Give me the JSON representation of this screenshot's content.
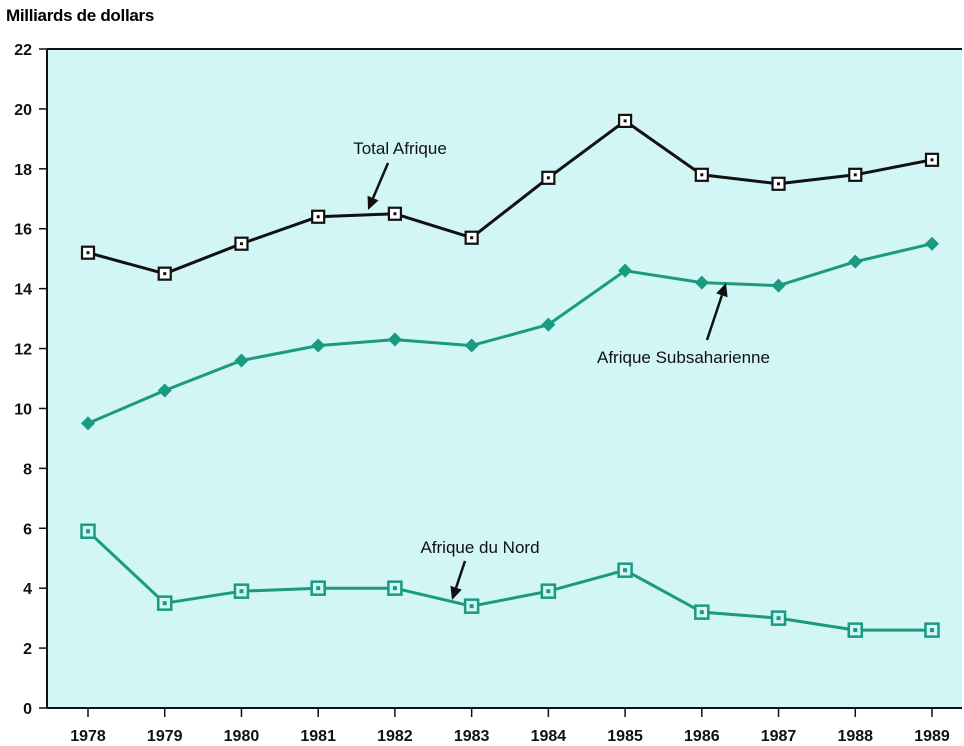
{
  "chart_data": {
    "type": "line",
    "title": "",
    "xlabel": "",
    "ylabel": "Milliards de dollars",
    "x": [
      "1978",
      "1979",
      "1980",
      "1981",
      "1982",
      "1983",
      "1984",
      "1985",
      "1986",
      "1987",
      "1988",
      "1989"
    ],
    "ylim": [
      0,
      22
    ],
    "yticks": [
      0,
      2,
      4,
      6,
      8,
      10,
      12,
      14,
      16,
      18,
      20,
      22
    ],
    "grid": false,
    "legend": "none",
    "series": [
      {
        "name": "Total Afrique",
        "values": [
          15.2,
          14.5,
          15.5,
          16.4,
          16.5,
          15.7,
          17.7,
          19.6,
          17.8,
          17.5,
          17.8,
          18.3
        ]
      },
      {
        "name": "Afrique Subsaharienne",
        "values": [
          9.5,
          10.6,
          11.6,
          12.1,
          12.3,
          12.1,
          12.8,
          14.6,
          14.2,
          14.1,
          14.9,
          15.5
        ]
      },
      {
        "name": "Afrique du Nord",
        "values": [
          5.9,
          3.5,
          3.9,
          4.0,
          4.0,
          3.4,
          3.9,
          4.6,
          3.2,
          3.0,
          2.6,
          2.6
        ]
      }
    ],
    "annotations": [
      {
        "text": "Total Afrique",
        "series": "Total Afrique"
      },
      {
        "text": "Afrique Subsaharienne",
        "series": "Afrique Subsaharienne"
      },
      {
        "text": "Afrique du Nord",
        "series": "Afrique du Nord"
      }
    ],
    "colors": {
      "plot_background": "#d2f5f5",
      "total": "#111111",
      "subsaharienne": "#1a9a7e",
      "nord": "#1a9a7e"
    }
  }
}
